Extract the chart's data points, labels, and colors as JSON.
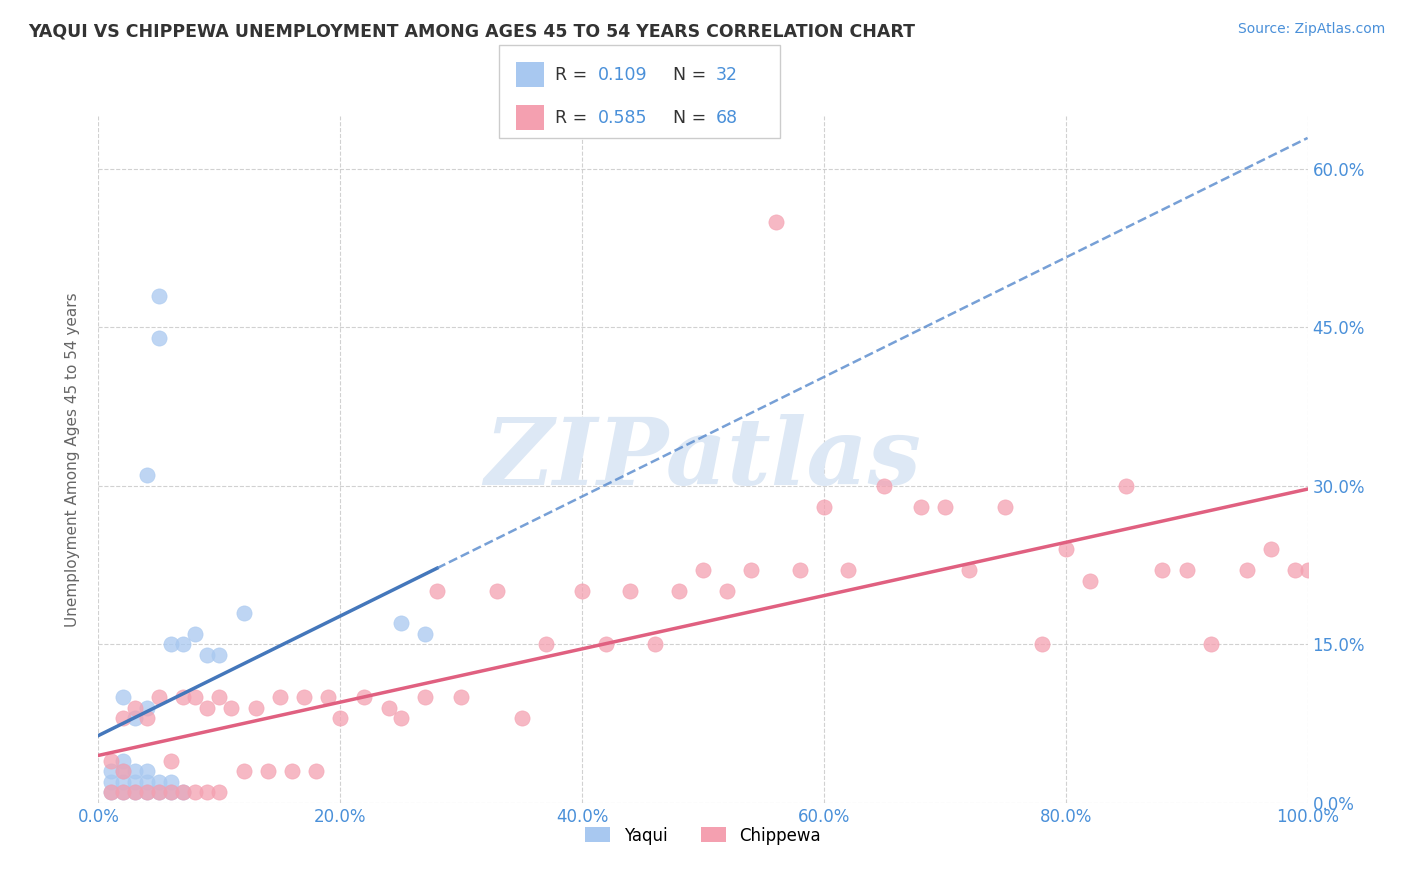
{
  "title": "YAQUI VS CHIPPEWA UNEMPLOYMENT AMONG AGES 45 TO 54 YEARS CORRELATION CHART",
  "source": "Source: ZipAtlas.com",
  "ylabel": "Unemployment Among Ages 45 to 54 years",
  "xlim": [
    0.0,
    1.0
  ],
  "ylim": [
    0.0,
    0.65
  ],
  "ytick_labels": [
    "0.0%",
    "15.0%",
    "30.0%",
    "45.0%",
    "60.0%"
  ],
  "ytick_vals": [
    0.0,
    0.15,
    0.3,
    0.45,
    0.6
  ],
  "xtick_labels": [
    "0.0%",
    "20.0%",
    "40.0%",
    "60.0%",
    "80.0%",
    "100.0%"
  ],
  "xtick_vals": [
    0.0,
    0.2,
    0.4,
    0.6,
    0.8,
    1.0
  ],
  "yaqui_color": "#a8c8f0",
  "chippewa_color": "#f4a0b0",
  "yaqui_line_color": "#5588cc",
  "yaqui_line_solid_color": "#4477bb",
  "chippewa_line_color": "#e06080",
  "title_color": "#333333",
  "axis_label_color": "#666666",
  "tick_label_color": "#4a90d9",
  "grid_color": "#cccccc",
  "background_color": "#ffffff",
  "watermark_text": "ZIPatlas",
  "watermark_color": "#dde8f5",
  "source_color": "#4a90d9",
  "yaqui_x": [
    0.01,
    0.01,
    0.01,
    0.02,
    0.02,
    0.02,
    0.02,
    0.02,
    0.03,
    0.03,
    0.03,
    0.03,
    0.04,
    0.04,
    0.04,
    0.04,
    0.04,
    0.05,
    0.05,
    0.05,
    0.05,
    0.06,
    0.06,
    0.06,
    0.07,
    0.07,
    0.08,
    0.09,
    0.1,
    0.12,
    0.25,
    0.27
  ],
  "yaqui_y": [
    0.01,
    0.02,
    0.03,
    0.01,
    0.02,
    0.03,
    0.04,
    0.1,
    0.01,
    0.02,
    0.03,
    0.08,
    0.01,
    0.02,
    0.03,
    0.09,
    0.31,
    0.01,
    0.02,
    0.48,
    0.44,
    0.01,
    0.02,
    0.15,
    0.01,
    0.15,
    0.16,
    0.14,
    0.14,
    0.18,
    0.17,
    0.16
  ],
  "chippewa_x": [
    0.01,
    0.01,
    0.02,
    0.02,
    0.02,
    0.03,
    0.03,
    0.04,
    0.04,
    0.05,
    0.05,
    0.06,
    0.06,
    0.07,
    0.07,
    0.08,
    0.08,
    0.09,
    0.09,
    0.1,
    0.1,
    0.11,
    0.12,
    0.13,
    0.14,
    0.15,
    0.16,
    0.17,
    0.18,
    0.19,
    0.2,
    0.22,
    0.24,
    0.25,
    0.27,
    0.28,
    0.3,
    0.33,
    0.35,
    0.37,
    0.4,
    0.42,
    0.44,
    0.46,
    0.48,
    0.5,
    0.52,
    0.54,
    0.56,
    0.58,
    0.6,
    0.62,
    0.65,
    0.68,
    0.7,
    0.72,
    0.75,
    0.78,
    0.8,
    0.82,
    0.85,
    0.88,
    0.9,
    0.92,
    0.95,
    0.97,
    0.99,
    1.0
  ],
  "chippewa_y": [
    0.01,
    0.04,
    0.01,
    0.03,
    0.08,
    0.01,
    0.09,
    0.01,
    0.08,
    0.01,
    0.1,
    0.01,
    0.04,
    0.01,
    0.1,
    0.01,
    0.1,
    0.01,
    0.09,
    0.01,
    0.1,
    0.09,
    0.03,
    0.09,
    0.03,
    0.1,
    0.03,
    0.1,
    0.03,
    0.1,
    0.08,
    0.1,
    0.09,
    0.08,
    0.1,
    0.2,
    0.1,
    0.2,
    0.08,
    0.15,
    0.2,
    0.15,
    0.2,
    0.15,
    0.2,
    0.22,
    0.2,
    0.22,
    0.55,
    0.22,
    0.28,
    0.22,
    0.3,
    0.28,
    0.28,
    0.22,
    0.28,
    0.15,
    0.24,
    0.21,
    0.3,
    0.22,
    0.22,
    0.15,
    0.22,
    0.24,
    0.22,
    0.22
  ]
}
